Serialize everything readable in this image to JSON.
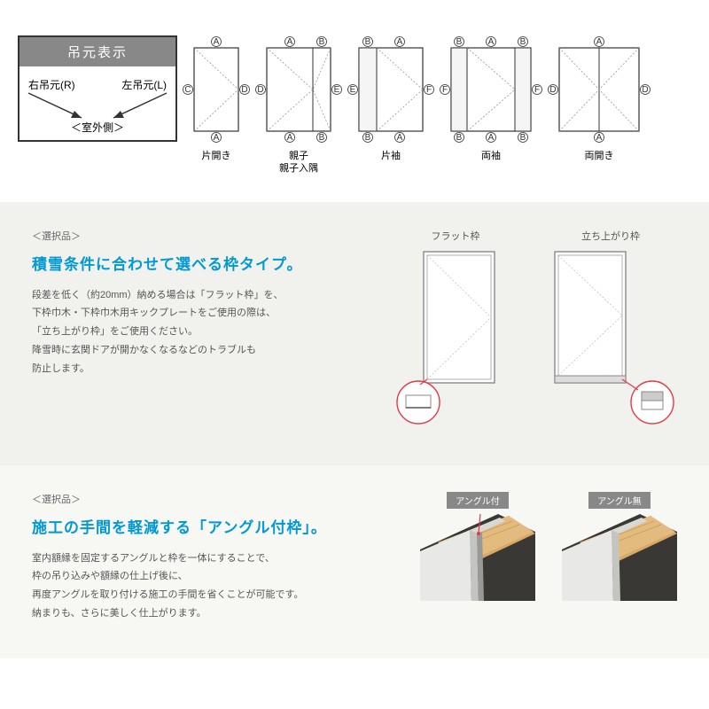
{
  "section1": {
    "hinge": {
      "title": "吊元表示",
      "right": "右吊元(R)",
      "left": "左吊元(L)",
      "outdoor": "＜室外側＞"
    },
    "doors": [
      {
        "label": "片開き"
      },
      {
        "label": "親子\n親子入隅"
      },
      {
        "label": "片袖"
      },
      {
        "label": "両袖"
      },
      {
        "label": "両開き"
      }
    ]
  },
  "section2": {
    "tag": "＜選択品＞",
    "headline": "積雪条件に合わせて選べる枠タイプ。",
    "body": "段差を低く（約20mm）納める場合は「フラット枠」を、\n下枠巾木・下枠巾木用キックプレートをご使用の際は、\n「立ち上がり枠」をご使用ください。\n降雪時に玄関ドアが開かなくなるなどのトラブルも\n防止します。",
    "figs": [
      {
        "label": "フラット枠"
      },
      {
        "label": "立ち上がり枠"
      }
    ],
    "colors": {
      "headline": "#0099d4",
      "accent": "#e63946"
    }
  },
  "section3": {
    "tag": "＜選択品＞",
    "headline": "施工の手間を軽減する「アングル付枠」。",
    "body": "室内額縁を固定するアングルと枠を一体にすることで、\n枠の吊り込みや額縁の仕上げ後に、\n再度アングルを取り付ける施工の手間を省くことが可能です。\n納まりも、さらに美しく仕上がります。",
    "figs": [
      {
        "label": "アングル付"
      },
      {
        "label": "アングル無"
      }
    ]
  }
}
